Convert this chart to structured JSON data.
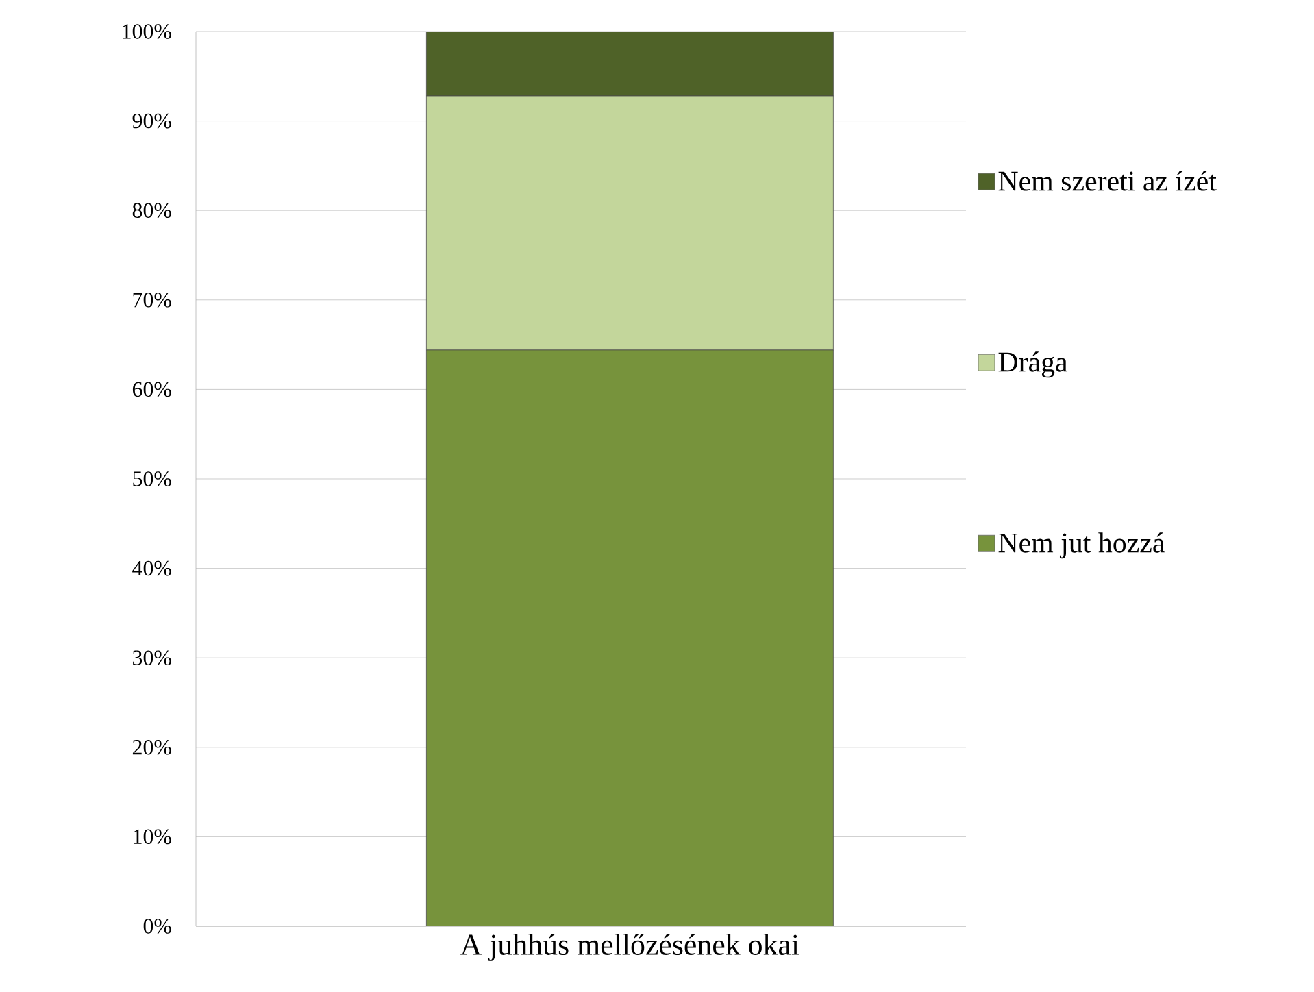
{
  "chart_data": {
    "type": "bar",
    "stacked": true,
    "categories": [
      "A juhhús mellőzésének okai"
    ],
    "series": [
      {
        "name": "Nem jut hozzá",
        "color": "#77933c",
        "values": [
          64.4
        ]
      },
      {
        "name": "Drága",
        "color": "#c3d69b",
        "values": [
          28.4
        ]
      },
      {
        "name": "Nem szereti az ízét",
        "color": "#4f6228",
        "values": [
          7.2
        ]
      }
    ],
    "ylim": [
      0,
      100
    ],
    "yticks": [
      {
        "value": 0,
        "label": "0%"
      },
      {
        "value": 10,
        "label": "10%"
      },
      {
        "value": 20,
        "label": "20%"
      },
      {
        "value": 30,
        "label": "30%"
      },
      {
        "value": 40,
        "label": "40%"
      },
      {
        "value": 50,
        "label": "50%"
      },
      {
        "value": 60,
        "label": "60%"
      },
      {
        "value": 70,
        "label": "70%"
      },
      {
        "value": 80,
        "label": "80%"
      },
      {
        "value": 90,
        "label": "90%"
      },
      {
        "value": 100,
        "label": "100%"
      }
    ],
    "grid": "y",
    "legend": "right"
  }
}
